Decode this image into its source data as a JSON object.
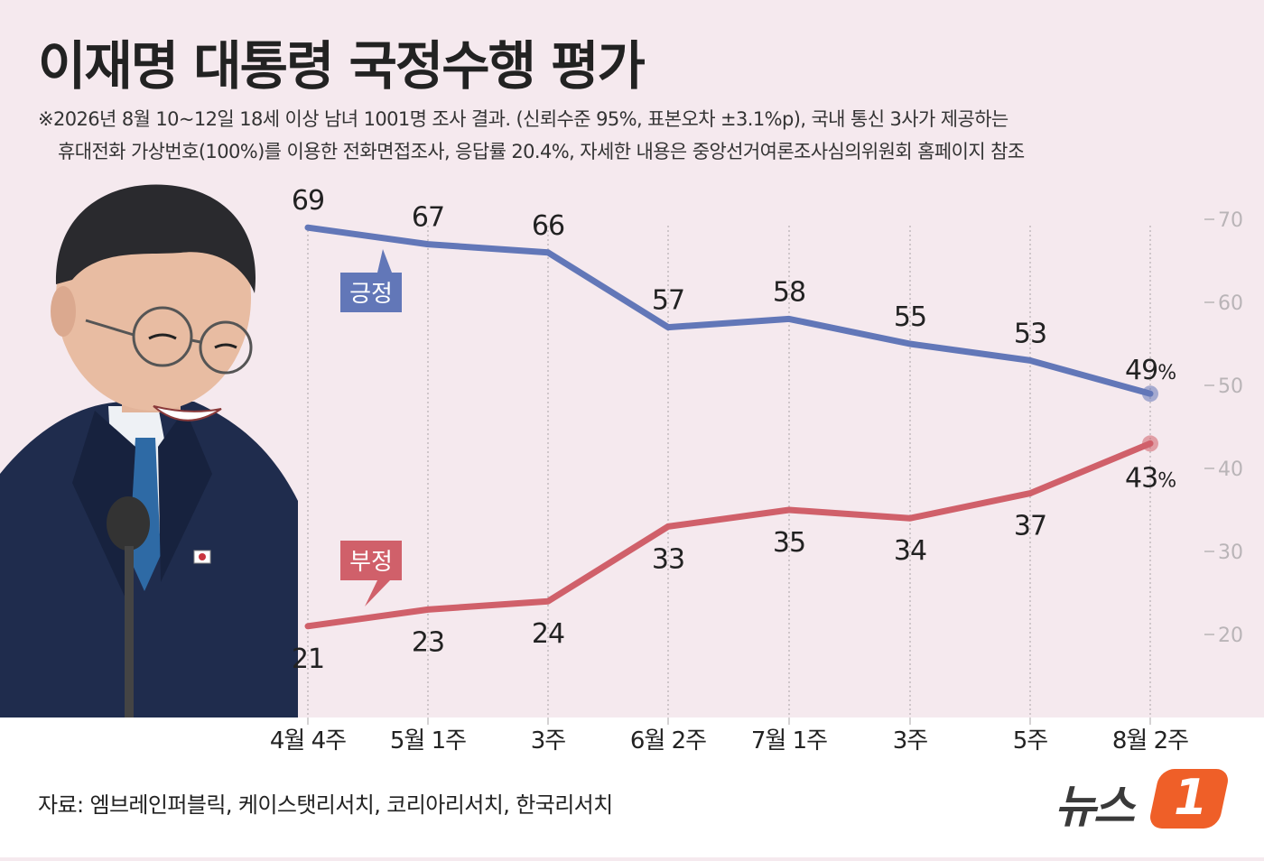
{
  "title": "이재명 대통령 국정수행 평가",
  "notes": [
    "※2026년 8월 10~12일 18세 이상 남녀 1001명 조사 결과. (신뢰수준 95%, 표본오차 ±3.1%p), 국내 통신 3사가 제공하는",
    "휴대전화  가상번호(100%)를 이용한 전화면접조사, 응답률 20.4%, 자세한 내용은 중앙선거여론조사심의위원회 홈페이지 참조"
  ],
  "source": "자료: 엠브레인퍼블릭, 케이스탯리서치, 코리아리서치, 한국리서치",
  "logo": {
    "text": "뉴스",
    "badge": "1"
  },
  "colors": {
    "positive": "#6277b8",
    "negative": "#d0606a",
    "background": "#f5e9ee"
  },
  "chart_data": {
    "type": "line",
    "categories": [
      "4월 4주",
      "5월 1주",
      "3주",
      "6월 2주",
      "7월 1주",
      "3주",
      "5주",
      "8월 2주"
    ],
    "series": [
      {
        "name": "긍정",
        "values": [
          69,
          67,
          66,
          57,
          58,
          55,
          53,
          49
        ],
        "color": "#6277b8"
      },
      {
        "name": "부정",
        "values": [
          21,
          23,
          24,
          33,
          35,
          34,
          37,
          43
        ],
        "color": "#d0606a"
      }
    ],
    "yticks": [
      70,
      60,
      50,
      40,
      30,
      20
    ],
    "ylim": [
      20,
      70
    ],
    "last_value_suffix": "%",
    "grid": "vertical dotted",
    "legend": "callouts on lines"
  }
}
